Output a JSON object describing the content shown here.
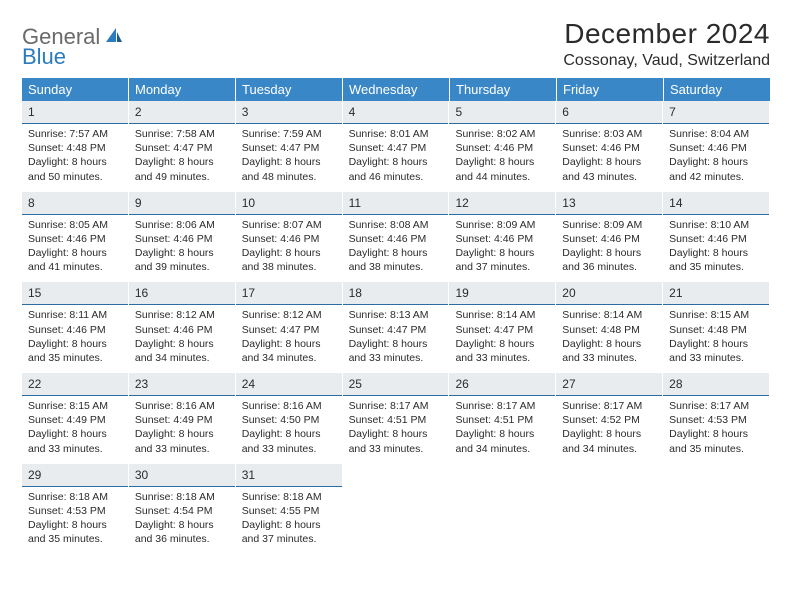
{
  "logo": {
    "general": "General",
    "blue": "Blue"
  },
  "title": "December 2024",
  "location": "Cossonay, Vaud, Switzerland",
  "colors": {
    "header_bg": "#3a87c7",
    "header_text": "#ffffff",
    "daynum_bg": "#e8ecef",
    "daynum_border": "#2b6ca3",
    "body_text": "#2b2b2b",
    "logo_gray": "#6a6a6a",
    "logo_blue": "#2b7bbf",
    "page_bg": "#ffffff"
  },
  "weekdays": [
    "Sunday",
    "Monday",
    "Tuesday",
    "Wednesday",
    "Thursday",
    "Friday",
    "Saturday"
  ],
  "weeks": [
    [
      {
        "day": 1,
        "sunrise": "7:57 AM",
        "sunset": "4:48 PM",
        "daylight": "8 hours and 50 minutes."
      },
      {
        "day": 2,
        "sunrise": "7:58 AM",
        "sunset": "4:47 PM",
        "daylight": "8 hours and 49 minutes."
      },
      {
        "day": 3,
        "sunrise": "7:59 AM",
        "sunset": "4:47 PM",
        "daylight": "8 hours and 48 minutes."
      },
      {
        "day": 4,
        "sunrise": "8:01 AM",
        "sunset": "4:47 PM",
        "daylight": "8 hours and 46 minutes."
      },
      {
        "day": 5,
        "sunrise": "8:02 AM",
        "sunset": "4:46 PM",
        "daylight": "8 hours and 44 minutes."
      },
      {
        "day": 6,
        "sunrise": "8:03 AM",
        "sunset": "4:46 PM",
        "daylight": "8 hours and 43 minutes."
      },
      {
        "day": 7,
        "sunrise": "8:04 AM",
        "sunset": "4:46 PM",
        "daylight": "8 hours and 42 minutes."
      }
    ],
    [
      {
        "day": 8,
        "sunrise": "8:05 AM",
        "sunset": "4:46 PM",
        "daylight": "8 hours and 41 minutes."
      },
      {
        "day": 9,
        "sunrise": "8:06 AM",
        "sunset": "4:46 PM",
        "daylight": "8 hours and 39 minutes."
      },
      {
        "day": 10,
        "sunrise": "8:07 AM",
        "sunset": "4:46 PM",
        "daylight": "8 hours and 38 minutes."
      },
      {
        "day": 11,
        "sunrise": "8:08 AM",
        "sunset": "4:46 PM",
        "daylight": "8 hours and 38 minutes."
      },
      {
        "day": 12,
        "sunrise": "8:09 AM",
        "sunset": "4:46 PM",
        "daylight": "8 hours and 37 minutes."
      },
      {
        "day": 13,
        "sunrise": "8:09 AM",
        "sunset": "4:46 PM",
        "daylight": "8 hours and 36 minutes."
      },
      {
        "day": 14,
        "sunrise": "8:10 AM",
        "sunset": "4:46 PM",
        "daylight": "8 hours and 35 minutes."
      }
    ],
    [
      {
        "day": 15,
        "sunrise": "8:11 AM",
        "sunset": "4:46 PM",
        "daylight": "8 hours and 35 minutes."
      },
      {
        "day": 16,
        "sunrise": "8:12 AM",
        "sunset": "4:46 PM",
        "daylight": "8 hours and 34 minutes."
      },
      {
        "day": 17,
        "sunrise": "8:12 AM",
        "sunset": "4:47 PM",
        "daylight": "8 hours and 34 minutes."
      },
      {
        "day": 18,
        "sunrise": "8:13 AM",
        "sunset": "4:47 PM",
        "daylight": "8 hours and 33 minutes."
      },
      {
        "day": 19,
        "sunrise": "8:14 AM",
        "sunset": "4:47 PM",
        "daylight": "8 hours and 33 minutes."
      },
      {
        "day": 20,
        "sunrise": "8:14 AM",
        "sunset": "4:48 PM",
        "daylight": "8 hours and 33 minutes."
      },
      {
        "day": 21,
        "sunrise": "8:15 AM",
        "sunset": "4:48 PM",
        "daylight": "8 hours and 33 minutes."
      }
    ],
    [
      {
        "day": 22,
        "sunrise": "8:15 AM",
        "sunset": "4:49 PM",
        "daylight": "8 hours and 33 minutes."
      },
      {
        "day": 23,
        "sunrise": "8:16 AM",
        "sunset": "4:49 PM",
        "daylight": "8 hours and 33 minutes."
      },
      {
        "day": 24,
        "sunrise": "8:16 AM",
        "sunset": "4:50 PM",
        "daylight": "8 hours and 33 minutes."
      },
      {
        "day": 25,
        "sunrise": "8:17 AM",
        "sunset": "4:51 PM",
        "daylight": "8 hours and 33 minutes."
      },
      {
        "day": 26,
        "sunrise": "8:17 AM",
        "sunset": "4:51 PM",
        "daylight": "8 hours and 34 minutes."
      },
      {
        "day": 27,
        "sunrise": "8:17 AM",
        "sunset": "4:52 PM",
        "daylight": "8 hours and 34 minutes."
      },
      {
        "day": 28,
        "sunrise": "8:17 AM",
        "sunset": "4:53 PM",
        "daylight": "8 hours and 35 minutes."
      }
    ],
    [
      {
        "day": 29,
        "sunrise": "8:18 AM",
        "sunset": "4:53 PM",
        "daylight": "8 hours and 35 minutes."
      },
      {
        "day": 30,
        "sunrise": "8:18 AM",
        "sunset": "4:54 PM",
        "daylight": "8 hours and 36 minutes."
      },
      {
        "day": 31,
        "sunrise": "8:18 AM",
        "sunset": "4:55 PM",
        "daylight": "8 hours and 37 minutes."
      },
      null,
      null,
      null,
      null
    ]
  ],
  "labels": {
    "sunrise_prefix": "Sunrise: ",
    "sunset_prefix": "Sunset: ",
    "daylight_prefix": "Daylight: "
  }
}
